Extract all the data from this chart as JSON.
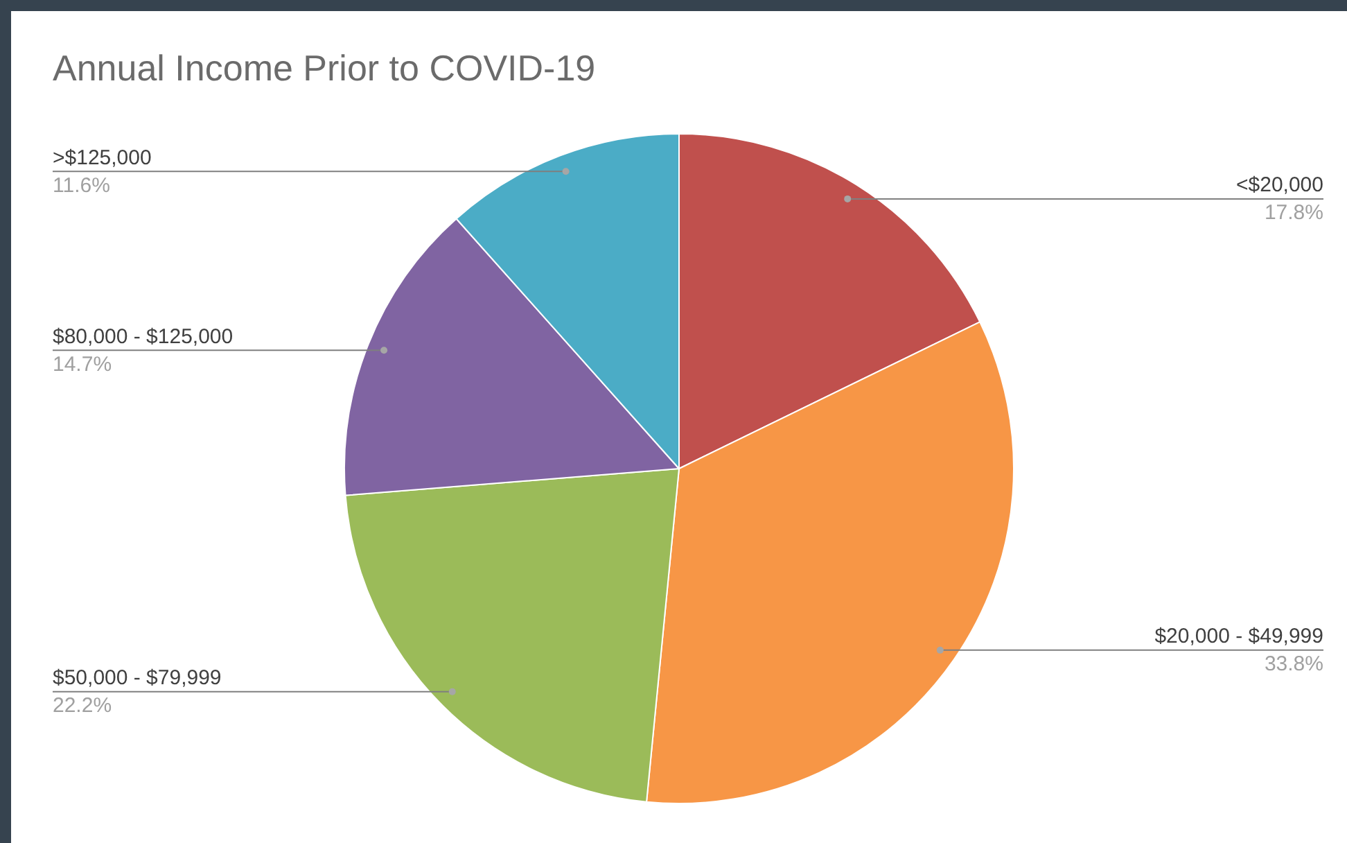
{
  "chart_data": {
    "type": "pie",
    "title": "Annual Income Prior to COVID-19",
    "categories": [
      "<$20,000",
      "$20,000 - $49,999",
      "$50,000 - $79,999",
      "$80,000 - $125,000",
      ">$125,000"
    ],
    "values": [
      17.8,
      33.8,
      22.2,
      14.7,
      11.6
    ],
    "value_labels": [
      "17.8%",
      "33.8%",
      "22.2%",
      "14.7%",
      "11.6%"
    ],
    "colors": [
      "#c0504d",
      "#f79646",
      "#9bbb59",
      "#8064a2",
      "#4bacc6"
    ],
    "legend": false
  }
}
